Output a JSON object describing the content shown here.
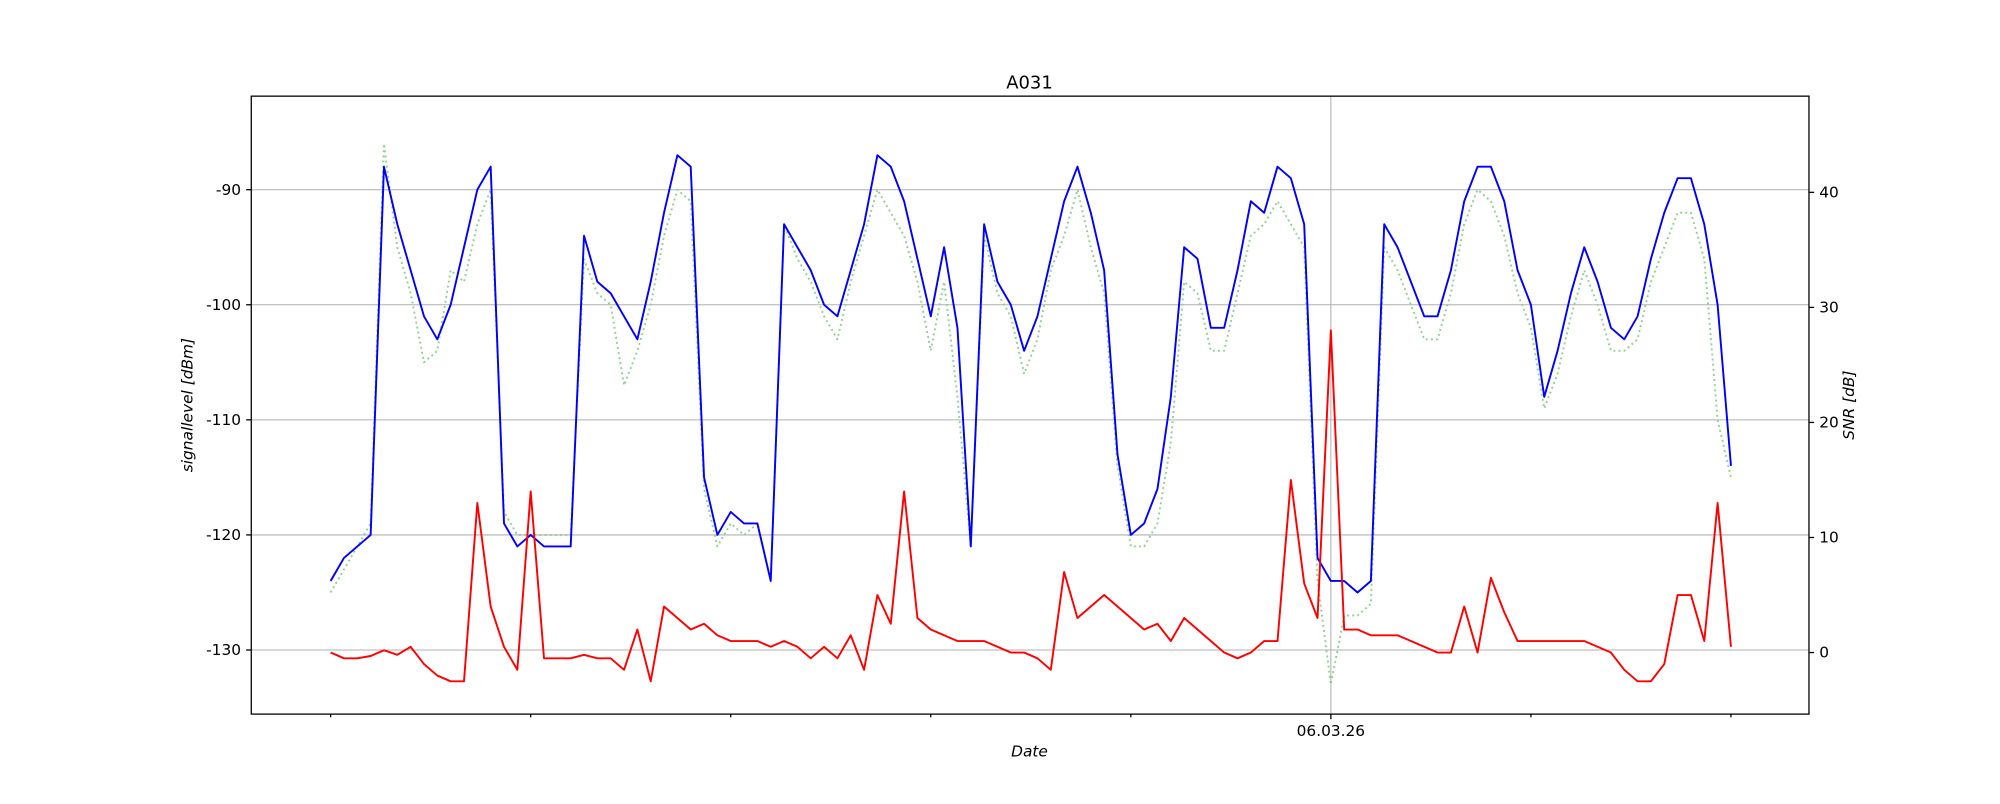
{
  "chart_data": {
    "type": "line",
    "title": "A031",
    "xlabel": "Date",
    "ylabel": "signallevel [dBm]",
    "y2label": "SNR [dB]",
    "x": [
      -15,
      -14.8,
      -14.6,
      -14.4,
      -14.2,
      -14,
      -13.8,
      -13.6,
      -13.4,
      -13.2,
      -13,
      -12.8,
      -12.6,
      -12.4,
      -12.2,
      -12,
      -11.8,
      -11.6,
      -11.4,
      -11.2,
      -11,
      -10.8,
      -10.6,
      -10.4,
      -10.2,
      -10,
      -9.8,
      -9.6,
      -9.4,
      -9.2,
      -9,
      -8.8,
      -8.6,
      -8.4,
      -8.2,
      -8,
      -7.8,
      -7.6,
      -7.4,
      -7.2,
      -7,
      -6.8,
      -6.6,
      -6.4,
      -6.2,
      -6,
      -5.8,
      -5.6,
      -5.4,
      -5.2,
      -5,
      -4.8,
      -4.6,
      -4.4,
      -4.2,
      -4,
      -3.8,
      -3.6,
      -3.4,
      -3.2,
      -3,
      -2.8,
      -2.6,
      -2.4,
      -2.2,
      -2,
      -1.8,
      -1.6,
      -1.4,
      -1.2,
      -1,
      -0.8,
      -0.6,
      -0.4,
      -0.2,
      0,
      0.2,
      0.4,
      0.6,
      0.8,
      1,
      1.2,
      1.4,
      1.6,
      1.8,
      2,
      2.2,
      2.4,
      2.6,
      2.8,
      3,
      3.2,
      3.4,
      3.6,
      3.8,
      4,
      4.2,
      4.4,
      4.6,
      4.8,
      5,
      5.2,
      5.4,
      5.6,
      5.8,
      6
    ],
    "xlim": [
      -16.19,
      7.17
    ],
    "xticks": [
      {
        "value": 0,
        "label": "06.03.26"
      }
    ],
    "xminorticks": [
      -15,
      -12,
      -9,
      -6,
      -3,
      3,
      6
    ],
    "ylim": [
      -135.57,
      -81.87
    ],
    "yticks": [
      -130,
      -120,
      -110,
      -100,
      -90
    ],
    "y2lim": [
      -5.35,
      48.36
    ],
    "y2ticks": [
      0,
      10,
      20,
      30,
      40
    ],
    "grid": true,
    "series": [
      {
        "color": "#8fd18f",
        "linestyle": "dotted",
        "values": [
          -125,
          -123,
          -121,
          -119,
          -86,
          -95,
          -99,
          -105,
          -104,
          -97,
          -98,
          -93,
          -90,
          -118,
          -120,
          -120,
          -120,
          -120,
          -120,
          -96,
          -99,
          -100,
          -107,
          -104,
          -100,
          -94,
          -90,
          -91,
          -116,
          -121,
          -119,
          -120,
          -119,
          -124,
          -93,
          -96,
          -98,
          -101,
          -103,
          -98,
          -94,
          -90,
          -92,
          -94,
          -98,
          -104,
          -98,
          -108,
          -121,
          -94,
          -99,
          -101,
          -106,
          -103,
          -97,
          -94,
          -90,
          -95,
          -99,
          -114,
          -121,
          -121,
          -119,
          -112,
          -98,
          -99,
          -104,
          -104,
          -99,
          -94,
          -93,
          -91,
          -93,
          -95,
          -124,
          -133,
          -127,
          -127,
          -126,
          -95,
          -97,
          -100,
          -103,
          -103,
          -99,
          -93,
          -90,
          -91,
          -94,
          -99,
          -102,
          -109,
          -106,
          -101,
          -97,
          -100,
          -104,
          -104,
          -103,
          -98,
          -95,
          -92,
          -92,
          -96,
          -110,
          -115
        ]
      },
      {
        "color": "#0000ff",
        "linestyle": "solid",
        "values": [
          -124,
          -122,
          -121,
          -120,
          -88,
          -93,
          -97,
          -101,
          -103,
          -100,
          -95,
          -90,
          -88,
          -119,
          -121,
          -120,
          -121,
          -121,
          -121,
          -94,
          -98,
          -99,
          -101,
          -103,
          -98,
          -92,
          -87,
          -88,
          -115,
          -120,
          -118,
          -119,
          -119,
          -124,
          -93,
          -95,
          -97,
          -100,
          -101,
          -97,
          -93,
          -87,
          -88,
          -91,
          -96,
          -101,
          -95,
          -102,
          -121,
          -93,
          -98,
          -100,
          -104,
          -101,
          -96,
          -91,
          -88,
          -92,
          -97,
          -113,
          -120,
          -119,
          -116,
          -108,
          -95,
          -96,
          -102,
          -102,
          -97,
          -91,
          -92,
          -88,
          -89,
          -93,
          -122,
          -124,
          -124,
          -125,
          -124,
          -93,
          -95,
          -98,
          -101,
          -101,
          -97,
          -91,
          -88,
          -88,
          -91,
          -97,
          -100,
          -108,
          -104,
          -99,
          -95,
          -98,
          -102,
          -103,
          -101,
          -96,
          -92,
          -89,
          -89,
          -93,
          -100,
          -114
        ]
      },
      {
        "color": "#ff0000",
        "linestyle": "solid",
        "axis": "y2",
        "values": [
          0,
          -0.5,
          -0.5,
          -0.3,
          0.2,
          -0.2,
          0.5,
          -1,
          -2,
          -2.5,
          -2.5,
          13,
          4,
          0.5,
          -1.5,
          14,
          -0.5,
          -0.5,
          -0.5,
          -0.2,
          -0.5,
          -0.5,
          -1.5,
          2,
          -2.5,
          4,
          3,
          2,
          2.5,
          1.5,
          1,
          1,
          1,
          0.5,
          1,
          0.5,
          -0.5,
          0.5,
          -0.5,
          1.5,
          -1.5,
          5,
          2.5,
          14,
          3,
          2,
          1.5,
          1,
          1,
          1,
          0.5,
          0,
          0,
          -0.5,
          -1.5,
          7,
          3,
          4,
          5,
          4,
          3,
          2,
          2.5,
          1,
          3,
          2,
          1,
          0,
          -0.5,
          0,
          1,
          1,
          15,
          6,
          3,
          28,
          2,
          2,
          1.5,
          1.5,
          1.5,
          1,
          0.5,
          0,
          0,
          4,
          0,
          6.5,
          3.5,
          1,
          1,
          1,
          1,
          1,
          1,
          0.5,
          0,
          -1.5,
          -2.5,
          -2.5,
          -1,
          5,
          5,
          1,
          13,
          0.5
        ]
      }
    ]
  }
}
